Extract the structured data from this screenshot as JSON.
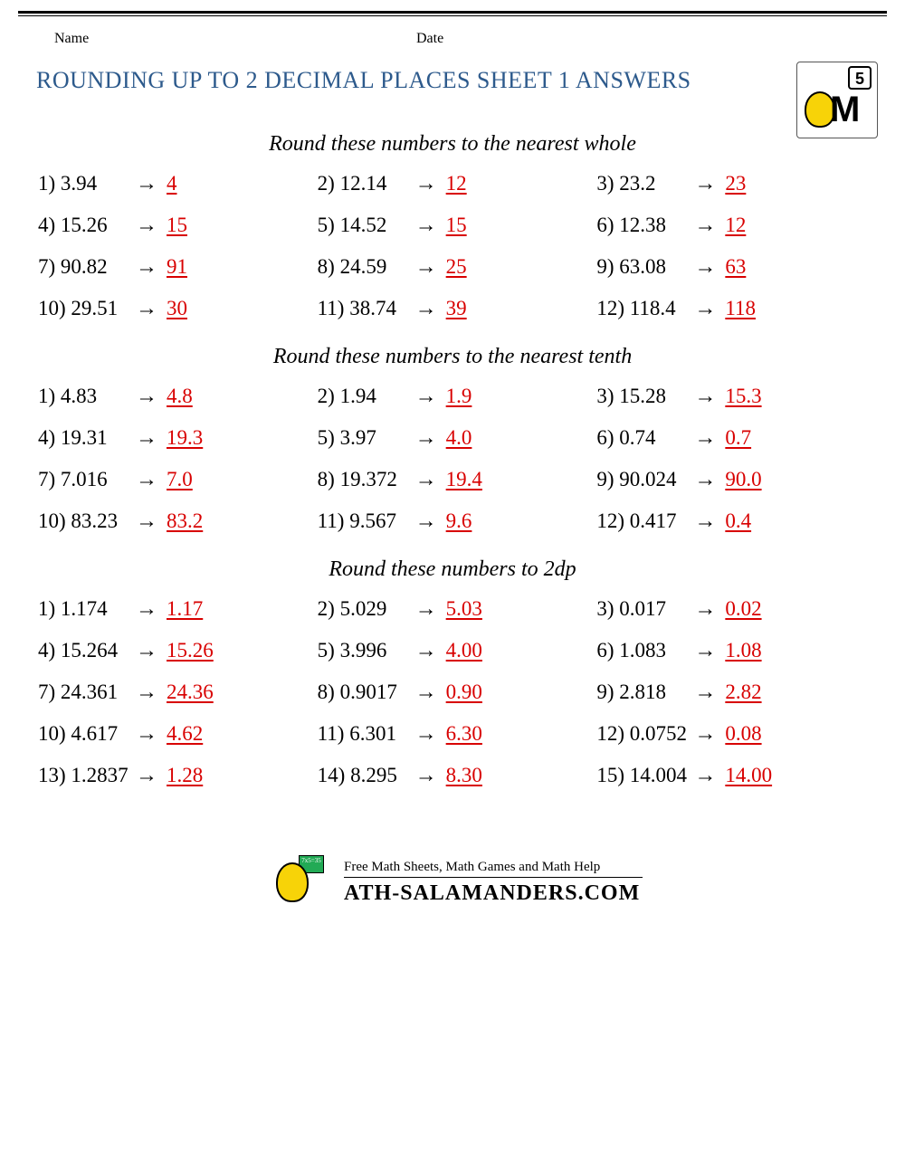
{
  "header": {
    "name_label": "Name",
    "date_label": "Date",
    "grade_badge": "5"
  },
  "title": "ROUNDING UP TO 2 DECIMAL PLACES SHEET 1 ANSWERS",
  "colors": {
    "title_color": "#2d5a8c",
    "answer_color": "#d80000",
    "text_color": "#000000",
    "background": "#ffffff"
  },
  "typography": {
    "title_fontsize": 26,
    "heading_fontsize": 24,
    "problem_fontsize": 23,
    "font_family": "Georgia, serif"
  },
  "arrow_glyph": "→",
  "sections": [
    {
      "heading": "Round these numbers to the nearest whole",
      "problems": [
        {
          "n": "1)",
          "value": "3.94",
          "answer": "4"
        },
        {
          "n": "2)",
          "value": "12.14",
          "answer": "12"
        },
        {
          "n": "3)",
          "value": "23.2",
          "answer": "23"
        },
        {
          "n": "4)",
          "value": "15.26",
          "answer": "15"
        },
        {
          "n": "5)",
          "value": "14.52",
          "answer": "15"
        },
        {
          "n": "6)",
          "value": "12.38",
          "answer": "12"
        },
        {
          "n": "7)",
          "value": "90.82",
          "answer": "91"
        },
        {
          "n": "8)",
          "value": "24.59",
          "answer": "25"
        },
        {
          "n": "9)",
          "value": "63.08",
          "answer": "63"
        },
        {
          "n": "10)",
          "value": "29.51",
          "answer": "30"
        },
        {
          "n": "11)",
          "value": "38.74",
          "answer": "39"
        },
        {
          "n": "12)",
          "value": "118.4",
          "answer": "118"
        }
      ]
    },
    {
      "heading": "Round these numbers to the nearest tenth",
      "problems": [
        {
          "n": "1)",
          "value": "4.83",
          "answer": "4.8"
        },
        {
          "n": "2)",
          "value": "1.94",
          "answer": "1.9"
        },
        {
          "n": "3)",
          "value": "15.28",
          "answer": "15.3"
        },
        {
          "n": "4)",
          "value": "19.31",
          "answer": "19.3"
        },
        {
          "n": "5)",
          "value": "3.97",
          "answer": "4.0"
        },
        {
          "n": "6)",
          "value": "0.74",
          "answer": "0.7"
        },
        {
          "n": "7)",
          "value": "7.016",
          "answer": "7.0"
        },
        {
          "n": "8)",
          "value": "19.372",
          "answer": "19.4"
        },
        {
          "n": "9)",
          "value": "90.024",
          "answer": "90.0"
        },
        {
          "n": "10)",
          "value": "83.23",
          "answer": "83.2"
        },
        {
          "n": "11)",
          "value": "9.567",
          "answer": "9.6"
        },
        {
          "n": "12)",
          "value": "0.417",
          "answer": "0.4"
        }
      ]
    },
    {
      "heading": "Round these numbers to 2dp",
      "problems": [
        {
          "n": "1)",
          "value": "1.174",
          "answer": "1.17"
        },
        {
          "n": "2)",
          "value": "5.029",
          "answer": "5.03"
        },
        {
          "n": "3)",
          "value": "0.017",
          "answer": "0.02"
        },
        {
          "n": "4)",
          "value": "15.264",
          "answer": "15.26"
        },
        {
          "n": "5)",
          "value": "3.996",
          "answer": "4.00"
        },
        {
          "n": "6)",
          "value": "1.083",
          "answer": "1.08"
        },
        {
          "n": "7)",
          "value": "24.361",
          "answer": "24.36"
        },
        {
          "n": "8)",
          "value": "0.9017",
          "answer": "0.90"
        },
        {
          "n": "9)",
          "value": "2.818",
          "answer": "2.82"
        },
        {
          "n": "10)",
          "value": "4.617",
          "answer": "4.62"
        },
        {
          "n": "11)",
          "value": "6.301",
          "answer": "6.30"
        },
        {
          "n": "12)",
          "value": "0.0752",
          "answer": "0.08"
        },
        {
          "n": "13)",
          "value": "1.2837",
          "answer": "1.28"
        },
        {
          "n": "14)",
          "value": "8.295",
          "answer": "8.30"
        },
        {
          "n": "15)",
          "value": "14.004",
          "answer": "14.00"
        }
      ]
    }
  ],
  "footer": {
    "tagline": "Free Math Sheets, Math Games and Math Help",
    "site": "ATH-SALAMANDERS.COM",
    "board_text": "7x5=35"
  }
}
